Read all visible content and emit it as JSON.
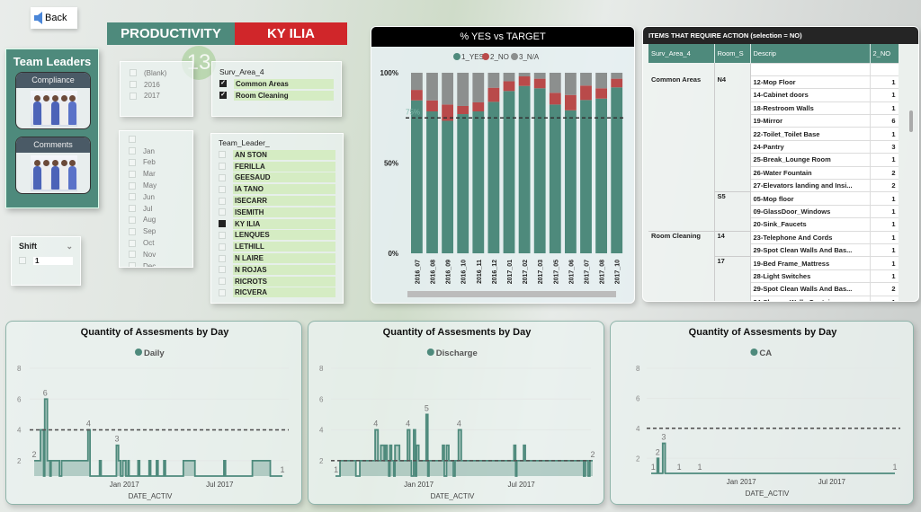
{
  "nav": {
    "back_label": "Back"
  },
  "banner": {
    "title": "PRODUCTIVITY",
    "selected_leader": "KY ILIA",
    "badge": "13"
  },
  "team_leaders": {
    "title": "Team Leaders",
    "buttons": [
      {
        "label": "Compliance"
      },
      {
        "label": "Comments"
      }
    ]
  },
  "shift": {
    "title": "Shift",
    "items": [
      {
        "label": "1",
        "checked": false
      }
    ]
  },
  "year_slicer": {
    "items": [
      {
        "label": "(Blank)",
        "checked": false
      },
      {
        "label": "2016",
        "checked": false
      },
      {
        "label": "2017",
        "checked": false
      }
    ]
  },
  "area_slicer": {
    "title": "Surv_Area_4",
    "items": [
      {
        "label": "Common Areas",
        "checked": true
      },
      {
        "label": "Room Cleaning",
        "checked": true
      }
    ]
  },
  "month_slicer": {
    "items": [
      {
        "label": ""
      },
      {
        "label": "Jan"
      },
      {
        "label": "Feb"
      },
      {
        "label": "Mar"
      },
      {
        "label": "May"
      },
      {
        "label": "Jun"
      },
      {
        "label": "Jul"
      },
      {
        "label": "Aug"
      },
      {
        "label": "Sep"
      },
      {
        "label": "Oct"
      },
      {
        "label": "Nov"
      },
      {
        "label": "Dec"
      }
    ]
  },
  "leader_slicer": {
    "title": "Team_Leader_",
    "items": [
      {
        "label": "AN STON",
        "checked": false
      },
      {
        "label": "FERILLA",
        "checked": false
      },
      {
        "label": "GEESAUD",
        "checked": false
      },
      {
        "label": "IA TANO",
        "checked": false
      },
      {
        "label": "ISECARR",
        "checked": false
      },
      {
        "label": "ISEMITH",
        "checked": false
      },
      {
        "label": "KY ILIA",
        "checked": true
      },
      {
        "label": "LENQUES",
        "checked": false
      },
      {
        "label": "LETHILL",
        "checked": false
      },
      {
        "label": "N LAIRE",
        "checked": false
      },
      {
        "label": "N ROJAS",
        "checked": false
      },
      {
        "label": "RICROTS",
        "checked": false
      },
      {
        "label": "RICVERA",
        "checked": false
      }
    ]
  },
  "action_table": {
    "title": "ITEMS THAT REQUIRE ACTION (selection = NO)",
    "columns": [
      "Surv_Area_4",
      "Room_S",
      "Descrip",
      "2_NO"
    ],
    "groups": [
      {
        "area": "Common Areas",
        "rooms": [
          {
            "room": "N4",
            "rows": [
              [
                "12-Mop Floor",
                "1"
              ],
              [
                "14-Cabinet doors",
                "1"
              ],
              [
                "18-Restroom Walls",
                "1"
              ],
              [
                "19-Mirror",
                "6"
              ],
              [
                "22-Toilet_Toilet Base",
                "1"
              ],
              [
                "24-Pantry",
                "3"
              ],
              [
                "25-Break_Lounge Room",
                "1"
              ],
              [
                "26-Water Fountain",
                "2"
              ],
              [
                "27-Elevators landing and Insi...",
                "2"
              ]
            ]
          },
          {
            "room": "S5",
            "rows": [
              [
                "05-Mop floor",
                "1"
              ],
              [
                "09-GlassDoor_Windows",
                "1"
              ],
              [
                "20-Sink_Faucets",
                "1"
              ]
            ]
          }
        ]
      },
      {
        "area": "Room Cleaning",
        "rooms": [
          {
            "room": "14",
            "rows": [
              [
                "23-Telephone And Cords",
                "1"
              ],
              [
                "29-Spot Clean Walls And Bas...",
                "1"
              ]
            ]
          },
          {
            "room": "17",
            "rows": [
              [
                "19-Bed Frame_Mattress",
                "1"
              ],
              [
                "28-Light Switches",
                "1"
              ],
              [
                "29-Spot Clean Walls And Bas...",
                "2"
              ],
              [
                "34-Sharps_Wally Containers",
                "1"
              ]
            ]
          }
        ]
      }
    ]
  },
  "chart_data": [
    {
      "type": "bar",
      "stacked": "100%",
      "title": "%  YES vs TARGET",
      "categories": [
        "2016_07",
        "2016_08",
        "2016_09",
        "2016_10",
        "2016_11",
        "2016_12",
        "2017_01",
        "2017_02",
        "2017_03",
        "2017_05",
        "2017_06",
        "2017_07",
        "2017_08",
        "2017_10"
      ],
      "series": [
        {
          "name": "1_YES",
          "color": "#4e8a7c",
          "values": [
            84.7,
            78.6,
            73.4,
            77.1,
            78.6,
            83.9,
            89.9,
            92.7,
            91.4,
            82.4,
            79.2,
            84.9,
            85.7,
            91.9
          ]
        },
        {
          "name": "2_NO",
          "color": "#b94a4a",
          "values": [
            5.8,
            6.1,
            9.0,
            4.5,
            5.0,
            7.8,
            5.4,
            5.3,
            5.3,
            6.5,
            8.5,
            8.0,
            5.7,
            4.8
          ]
        },
        {
          "name": "3_N/A",
          "color": "#8c8f8e",
          "values": [
            9.5,
            15.3,
            17.6,
            18.4,
            16.4,
            8.3,
            4.7,
            2.0,
            3.3,
            11.1,
            12.3,
            7.1,
            8.6,
            3.3
          ]
        }
      ],
      "ylim": [
        0,
        100
      ],
      "yticks": [
        "0%",
        "50%",
        "100%"
      ],
      "target": 75,
      "target_label": "75%",
      "legend": "top"
    },
    {
      "type": "area",
      "step": true,
      "title": "Quantity of Assesments by Day",
      "series_name": "Daily",
      "xlabel": "DATE_ACTIV",
      "xticks": [
        "Jan 2017",
        "Jul 2017"
      ],
      "xtick_dates": [
        "2017-01-01",
        "2017-07-01"
      ],
      "yticks": [
        2,
        4,
        6,
        8
      ],
      "ylim": [
        1,
        8
      ],
      "x_range": [
        "2016-07-14",
        "2017-10-28"
      ],
      "target": 4,
      "points": [
        [
          "2016-07-14",
          2
        ],
        [
          "2016-07-26",
          4
        ],
        [
          "2016-08-01",
          1
        ],
        [
          "2016-08-03",
          6
        ],
        [
          "2016-08-08",
          2
        ],
        [
          "2016-08-13",
          1
        ],
        [
          "2016-08-15",
          2
        ],
        [
          "2016-08-31",
          1
        ],
        [
          "2016-09-04",
          2
        ],
        [
          "2016-10-24",
          4
        ],
        [
          "2016-10-28",
          1
        ],
        [
          "2016-11-15",
          2
        ],
        [
          "2016-11-18",
          1
        ],
        [
          "2016-12-17",
          3
        ],
        [
          "2016-12-21",
          2
        ],
        [
          "2016-12-25",
          1
        ],
        [
          "2016-12-29",
          2
        ],
        [
          "2017-01-04",
          1
        ],
        [
          "2017-01-08",
          2
        ],
        [
          "2017-01-10",
          1
        ],
        [
          "2017-01-27",
          2
        ],
        [
          "2017-01-30",
          1
        ],
        [
          "2017-02-17",
          2
        ],
        [
          "2017-02-20",
          1
        ],
        [
          "2017-03-03",
          2
        ],
        [
          "2017-03-06",
          1
        ],
        [
          "2017-03-17",
          2
        ],
        [
          "2017-03-20",
          1
        ],
        [
          "2017-04-23",
          2
        ],
        [
          "2017-05-15",
          1
        ],
        [
          "2017-07-09",
          2
        ],
        [
          "2017-07-12",
          1
        ],
        [
          "2017-09-01",
          2
        ],
        [
          "2017-10-05",
          1
        ]
      ],
      "labels": [
        [
          "2016-07-14",
          2,
          "2"
        ],
        [
          "2016-08-04",
          6,
          "6"
        ],
        [
          "2016-10-25",
          4,
          "4"
        ],
        [
          "2016-12-18",
          3,
          "3"
        ],
        [
          "2017-10-28",
          1,
          "1"
        ]
      ]
    },
    {
      "type": "area",
      "step": true,
      "title": "Quantity of Assesments by Day",
      "series_name": "Discharge",
      "xlabel": "DATE_ACTIV",
      "xticks": [
        "Jan 2017",
        "Jul 2017"
      ],
      "xtick_dates": [
        "2017-01-01",
        "2017-07-01"
      ],
      "yticks": [
        2,
        4,
        6,
        8
      ],
      "ylim": [
        1,
        8
      ],
      "x_range": [
        "2016-08-07",
        "2017-11-04"
      ],
      "target": 2,
      "points": [
        [
          "2016-08-07",
          1
        ],
        [
          "2016-08-15",
          2
        ],
        [
          "2016-09-12",
          1
        ],
        [
          "2016-09-19",
          2
        ],
        [
          "2016-10-16",
          4
        ],
        [
          "2016-10-21",
          2
        ],
        [
          "2016-10-26",
          3
        ],
        [
          "2016-11-01",
          2
        ],
        [
          "2016-11-03",
          3
        ],
        [
          "2016-11-06",
          2
        ],
        [
          "2016-11-09",
          1
        ],
        [
          "2016-11-11",
          3
        ],
        [
          "2016-11-14",
          2
        ],
        [
          "2016-11-18",
          1
        ],
        [
          "2016-11-20",
          3
        ],
        [
          "2016-11-28",
          2
        ],
        [
          "2016-12-12",
          4
        ],
        [
          "2016-12-16",
          2
        ],
        [
          "2016-12-19",
          1
        ],
        [
          "2016-12-23",
          4
        ],
        [
          "2016-12-26",
          1
        ],
        [
          "2016-12-28",
          3
        ],
        [
          "2017-01-01",
          2
        ],
        [
          "2017-01-14",
          5
        ],
        [
          "2017-01-17",
          1
        ],
        [
          "2017-01-19",
          2
        ],
        [
          "2017-02-12",
          3
        ],
        [
          "2017-02-15",
          1
        ],
        [
          "2017-02-19",
          3
        ],
        [
          "2017-02-23",
          2
        ],
        [
          "2017-03-03",
          1
        ],
        [
          "2017-03-06",
          2
        ],
        [
          "2017-03-12",
          4
        ],
        [
          "2017-03-17",
          2
        ],
        [
          "2017-06-18",
          3
        ],
        [
          "2017-06-21",
          1
        ],
        [
          "2017-06-23",
          2
        ],
        [
          "2017-07-05",
          3
        ],
        [
          "2017-07-08",
          2
        ],
        [
          "2017-10-19",
          1
        ],
        [
          "2017-10-22",
          2
        ],
        [
          "2017-10-27",
          1
        ],
        [
          "2017-10-30",
          2
        ]
      ],
      "labels": [
        [
          "2016-08-08",
          1,
          "1"
        ],
        [
          "2016-10-17",
          4,
          "4"
        ],
        [
          "2016-12-13",
          4,
          "4"
        ],
        [
          "2017-01-15",
          5,
          "5"
        ],
        [
          "2017-03-13",
          4,
          "4"
        ],
        [
          "2017-11-04",
          2,
          "2"
        ]
      ]
    },
    {
      "type": "area",
      "step": true,
      "title": "Quantity of Assesments by Day",
      "series_name": "CA",
      "xlabel": "DATE_ACTIV",
      "xticks": [
        "Jan 2017",
        "Jul 2017"
      ],
      "xtick_dates": [
        "2017-01-01",
        "2017-07-01"
      ],
      "yticks": [
        2,
        4,
        6,
        8
      ],
      "ylim": [
        1,
        8
      ],
      "x_range": [
        "2016-07-05",
        "2017-11-04"
      ],
      "target": 4,
      "points": [
        [
          "2016-07-05",
          1
        ],
        [
          "2016-07-17",
          2
        ],
        [
          "2016-07-20",
          1
        ],
        [
          "2016-07-28",
          3
        ],
        [
          "2016-08-02",
          1
        ]
      ],
      "labels": [
        [
          "2016-07-09",
          1,
          "1"
        ],
        [
          "2016-07-18",
          2,
          "2"
        ],
        [
          "2016-07-30",
          3,
          "3"
        ],
        [
          "2016-08-30",
          1,
          "1"
        ],
        [
          "2016-10-10",
          1,
          "1"
        ],
        [
          "2017-11-04",
          1,
          "1"
        ]
      ]
    }
  ],
  "colors": {
    "teal": "#4e8a7c",
    "red": "#d0262a",
    "dark": "#222222"
  }
}
